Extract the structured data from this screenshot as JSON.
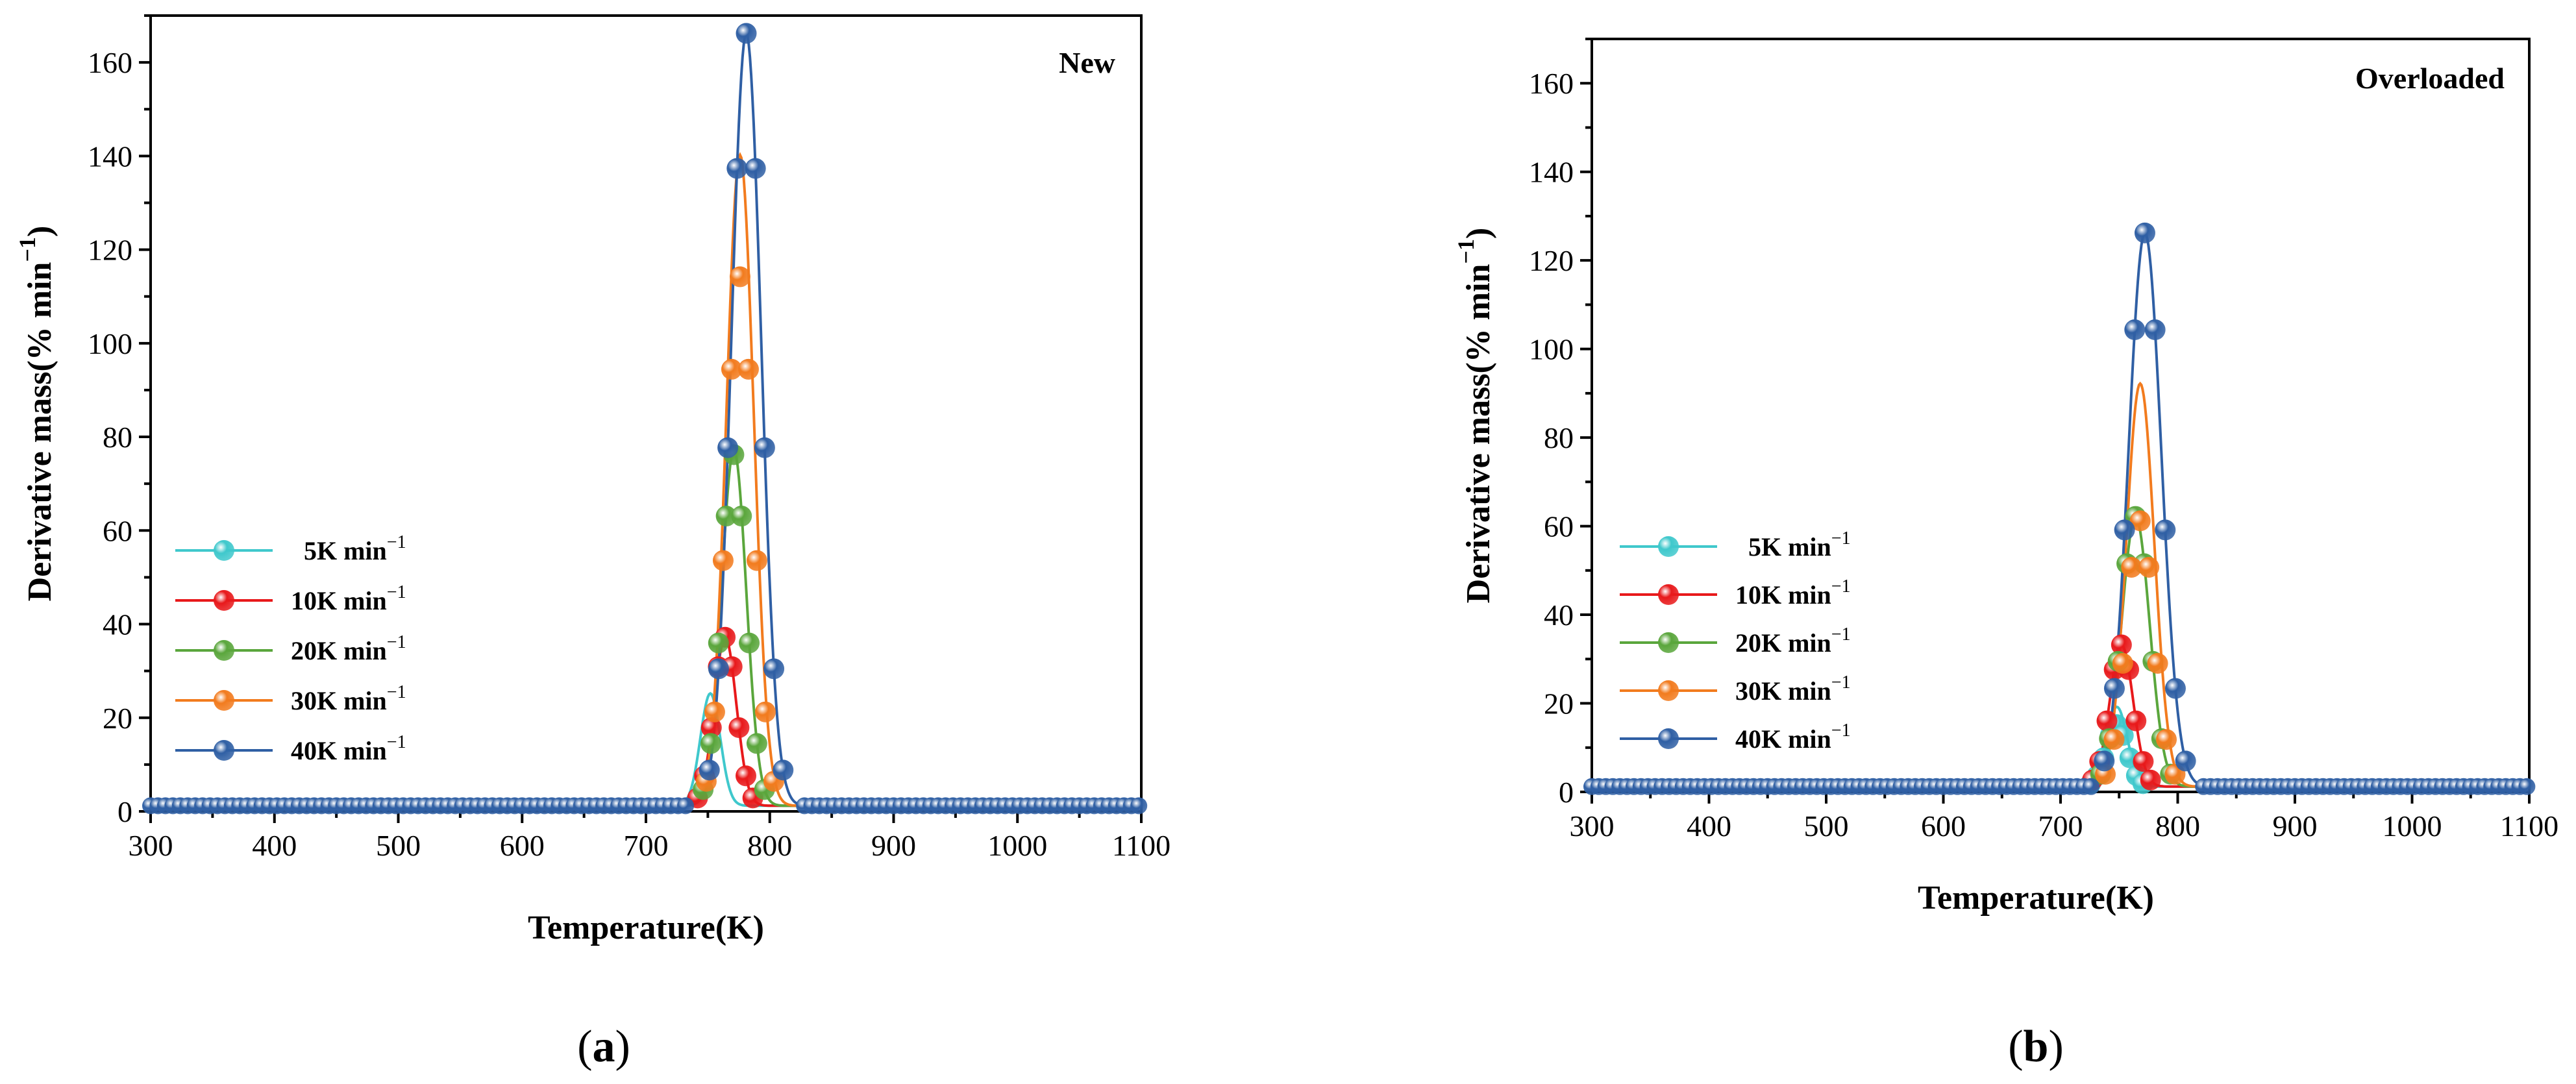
{
  "colors": {
    "5K": "#3fc8cc",
    "10K": "#e8191b",
    "20K": "#5aa63c",
    "30K": "#f27b1e",
    "40K": "#2f5fa4"
  },
  "chart_data": [
    {
      "id": "a",
      "type": "line",
      "title": "New",
      "subfigure_label": {
        "open": "(",
        "letter": "a",
        "close": ")"
      },
      "xlabel": "Temperature(K)",
      "ylabel": {
        "text": "Derivative mass(% min",
        "sup": "−1",
        "close": ")"
      },
      "xlim": [
        300,
        1100
      ],
      "ylim": [
        0,
        170
      ],
      "xticks": [
        300,
        400,
        500,
        600,
        700,
        800,
        900,
        1000,
        1100
      ],
      "yticks": [
        0,
        20,
        40,
        60,
        80,
        100,
        120,
        140,
        160
      ],
      "legend_position": "middle-left",
      "series": [
        {
          "key": "5K",
          "name": "5K",
          "unit": "min",
          "sup": "−1",
          "peak_T": 752,
          "peak_v": 24,
          "width": 8,
          "marker_peak": 0
        },
        {
          "key": "10K",
          "name": "10K",
          "unit": "min",
          "sup": "−1",
          "peak_T": 764,
          "peak_v": 36,
          "width": 9,
          "marker_peak": 36
        },
        {
          "key": "20K",
          "name": "20K",
          "unit": "min",
          "sup": "−1",
          "peak_T": 771,
          "peak_v": 76,
          "width": 10,
          "marker_peak": 75
        },
        {
          "key": "30K",
          "name": "30K",
          "unit": "min",
          "sup": "−1",
          "peak_T": 776,
          "peak_v": 139,
          "width": 11,
          "marker_peak": 113
        },
        {
          "key": "40K",
          "name": "40K",
          "unit": "min",
          "sup": "−1",
          "peak_T": 781,
          "peak_v": 165,
          "width": 12,
          "marker_peak": 165
        }
      ]
    },
    {
      "id": "b",
      "type": "line",
      "title": "Overloaded",
      "subfigure_label": {
        "open": "(",
        "letter": "b",
        "close": ")"
      },
      "xlabel": "Temperature(K)",
      "ylabel": {
        "text": "Derivative mass(% min",
        "sup": "−1",
        "close": ")"
      },
      "xlim": [
        300,
        1100
      ],
      "ylim": [
        0,
        170
      ],
      "xticks": [
        300,
        400,
        500,
        600,
        700,
        800,
        900,
        1000,
        1100
      ],
      "yticks": [
        0,
        20,
        40,
        60,
        80,
        100,
        120,
        140,
        160
      ],
      "legend_position": "middle-left",
      "series": [
        {
          "key": "5K",
          "name": "5K",
          "unit": "min",
          "sup": "−1",
          "peak_T": 748,
          "peak_v": 18,
          "width": 9,
          "marker_peak": 14
        },
        {
          "key": "10K",
          "name": "10K",
          "unit": "min",
          "sup": "−1",
          "peak_T": 752,
          "peak_v": 32,
          "width": 10,
          "marker_peak": 32
        },
        {
          "key": "20K",
          "name": "20K",
          "unit": "min",
          "sup": "−1",
          "peak_T": 764,
          "peak_v": 61,
          "width": 12,
          "marker_peak": 61
        },
        {
          "key": "30K",
          "name": "30K",
          "unit": "min",
          "sup": "−1",
          "peak_T": 768,
          "peak_v": 91,
          "width": 12,
          "marker_peak": 60
        },
        {
          "key": "40K",
          "name": "40K",
          "unit": "min",
          "sup": "−1",
          "peak_T": 772,
          "peak_v": 125,
          "width": 14,
          "marker_peak": 125
        }
      ]
    }
  ]
}
